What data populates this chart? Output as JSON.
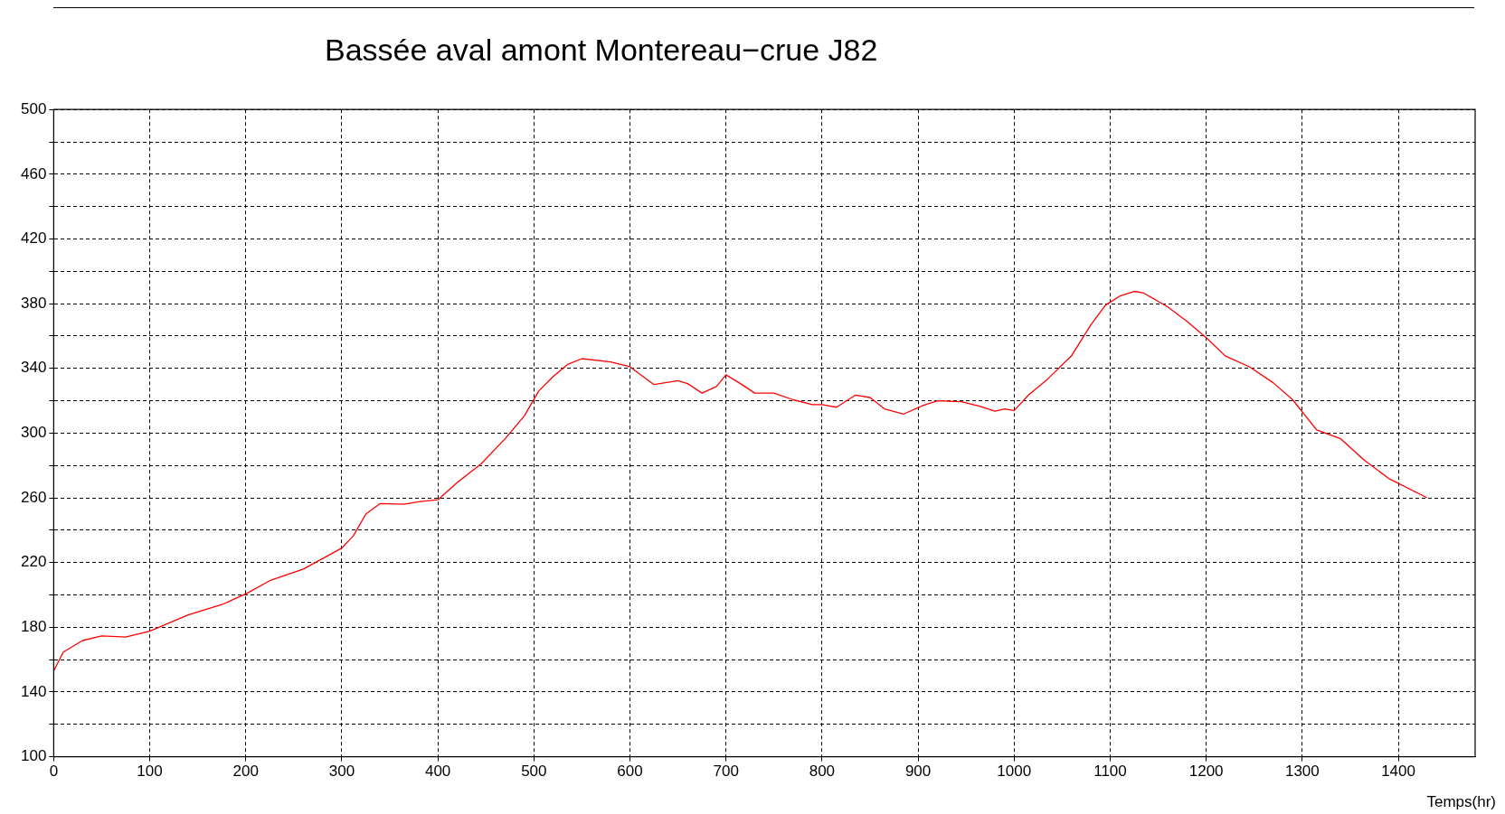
{
  "chart_data": {
    "type": "line",
    "title": "Bassée aval amont Montereau−crue J82",
    "xlabel": "Temps(hr)",
    "x": [
      0,
      10,
      30,
      50,
      75,
      100,
      140,
      175,
      200,
      225,
      260,
      300,
      312,
      325,
      340,
      365,
      380,
      400,
      420,
      445,
      470,
      490,
      505,
      520,
      535,
      550,
      580,
      600,
      625,
      650,
      660,
      675,
      690,
      700,
      715,
      730,
      750,
      770,
      790,
      800,
      815,
      835,
      850,
      865,
      885,
      905,
      920,
      945,
      965,
      980,
      990,
      1000,
      1015,
      1035,
      1060,
      1080,
      1095,
      1110,
      1125,
      1135,
      1160,
      1180,
      1200,
      1220,
      1245,
      1270,
      1290,
      1315,
      1340,
      1365,
      1390,
      1430
    ],
    "series": [
      {
        "color": "#ff0000",
        "values": [
          153,
          164.7,
          171.8,
          174.7,
          174,
          177.6,
          187.6,
          194,
          200.6,
          208.8,
          216,
          229,
          236.5,
          250,
          256.5,
          256,
          257.6,
          258.8,
          269.4,
          281,
          296.5,
          310.6,
          326,
          335,
          342.4,
          346,
          344,
          341,
          330,
          332.4,
          330.6,
          324.7,
          328.8,
          336,
          330.6,
          324.7,
          324.7,
          320.6,
          317.6,
          317.6,
          316,
          323.5,
          322,
          315,
          311.8,
          317,
          320,
          319.4,
          316.5,
          313.5,
          315,
          314,
          323.5,
          333.5,
          348,
          367,
          379,
          384.7,
          387.6,
          386.5,
          378,
          369,
          359,
          347.6,
          341,
          331,
          320.6,
          302,
          296.5,
          283,
          272,
          260
        ]
      }
    ],
    "xlim": [
      0,
      1480
    ],
    "ylim": [
      100,
      500
    ],
    "xticks": [
      0,
      100,
      200,
      300,
      400,
      500,
      600,
      700,
      800,
      900,
      1000,
      1100,
      1200,
      1300,
      1400
    ],
    "yticks": [
      100,
      {
        "value": 120,
        "label": null
      },
      140,
      {
        "value": 160,
        "label": null
      },
      180,
      {
        "value": 200,
        "label": null
      },
      220,
      {
        "value": 240,
        "label": null
      },
      260,
      {
        "value": 280,
        "label": null
      },
      300,
      {
        "value": 320,
        "label": null
      },
      340,
      {
        "value": 360,
        "label": null
      },
      380,
      {
        "value": 400,
        "label": null
      },
      420,
      {
        "value": 440,
        "label": null
      },
      460,
      {
        "value": 480,
        "label": null
      },
      500
    ],
    "grid": true,
    "legend": false,
    "marker": "none",
    "line_style": "solid"
  }
}
